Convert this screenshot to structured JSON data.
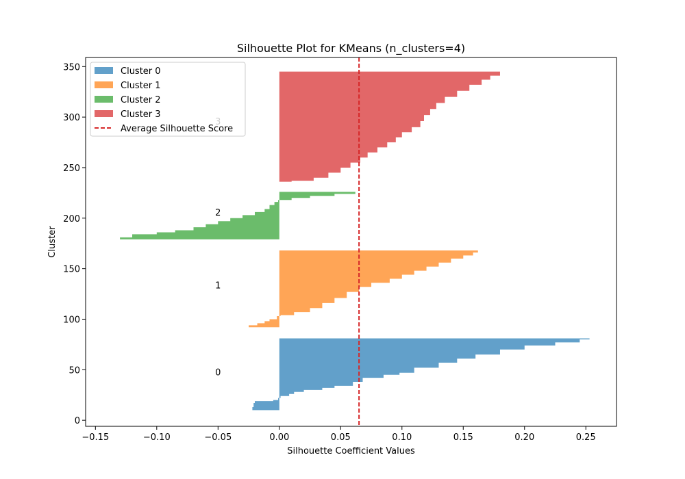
{
  "chart_data": {
    "type": "silhouette",
    "title": "Silhouette Plot for KMeans (n_clusters=4)",
    "xlabel": "Silhouette Coefficient Values",
    "ylabel": "Cluster",
    "xlim": [
      -0.158,
      0.275
    ],
    "ylim": [
      -6,
      359
    ],
    "xticks": [
      -0.15,
      -0.1,
      -0.05,
      0.0,
      0.05,
      0.1,
      0.15,
      0.2,
      0.25
    ],
    "xtick_labels": [
      "−0.15",
      "−0.10",
      "−0.05",
      "0.00",
      "0.05",
      "0.10",
      "0.15",
      "0.20",
      "0.25"
    ],
    "yticks": [
      0,
      50,
      100,
      150,
      200,
      250,
      300,
      350
    ],
    "ytick_labels": [
      "0",
      "50",
      "100",
      "150",
      "200",
      "250",
      "300",
      "350"
    ],
    "average_silhouette_score": 0.065,
    "average_line_color": "#d62728",
    "legend_position": "upper-left",
    "label_x": -0.05,
    "clusters": [
      {
        "label": "0",
        "legend": "Cluster 0",
        "color": "#1f77b4",
        "y_start": 10,
        "y_end": 81,
        "label_y": 48,
        "profile": [
          [
            10,
            -0.028
          ],
          [
            13,
            -0.022
          ],
          [
            15,
            -0.021
          ],
          [
            17,
            -0.021
          ],
          [
            19,
            -0.02
          ],
          [
            20,
            -0.005
          ],
          [
            22,
            -0.001
          ],
          [
            24,
            0.001
          ],
          [
            26,
            0.008
          ],
          [
            28,
            0.012
          ],
          [
            30,
            0.02
          ],
          [
            32,
            0.035
          ],
          [
            34,
            0.045
          ],
          [
            38,
            0.06
          ],
          [
            42,
            0.068
          ],
          [
            45,
            0.085
          ],
          [
            47,
            0.098
          ],
          [
            52,
            0.11
          ],
          [
            57,
            0.13
          ],
          [
            61,
            0.145
          ],
          [
            65,
            0.16
          ],
          [
            70,
            0.18
          ],
          [
            74,
            0.2
          ],
          [
            77,
            0.225
          ],
          [
            80,
            0.245
          ],
          [
            81,
            0.253
          ]
        ]
      },
      {
        "label": "1",
        "legend": "Cluster 1",
        "color": "#ff7f0e",
        "y_start": 92,
        "y_end": 168,
        "label_y": 134,
        "profile": [
          [
            92,
            -0.057
          ],
          [
            94,
            -0.025
          ],
          [
            96,
            -0.018
          ],
          [
            98,
            -0.012
          ],
          [
            100,
            -0.008
          ],
          [
            103,
            -0.002
          ],
          [
            104,
            0.001
          ],
          [
            107,
            0.012
          ],
          [
            111,
            0.025
          ],
          [
            116,
            0.035
          ],
          [
            121,
            0.045
          ],
          [
            127,
            0.055
          ],
          [
            132,
            0.065
          ],
          [
            136,
            0.075
          ],
          [
            140,
            0.09
          ],
          [
            144,
            0.1
          ],
          [
            148,
            0.11
          ],
          [
            152,
            0.12
          ],
          [
            156,
            0.13
          ],
          [
            160,
            0.14
          ],
          [
            163,
            0.15
          ],
          [
            166,
            0.158
          ],
          [
            168,
            0.162
          ]
        ]
      },
      {
        "label": "2",
        "legend": "Cluster 2",
        "color": "#2ca02c",
        "y_start": 179,
        "y_end": 226,
        "label_y": 206,
        "profile": [
          [
            179,
            -0.14
          ],
          [
            181,
            -0.13
          ],
          [
            184,
            -0.12
          ],
          [
            186,
            -0.1
          ],
          [
            188,
            -0.085
          ],
          [
            191,
            -0.07
          ],
          [
            194,
            -0.06
          ],
          [
            197,
            -0.05
          ],
          [
            200,
            -0.04
          ],
          [
            203,
            -0.03
          ],
          [
            206,
            -0.02
          ],
          [
            209,
            -0.012
          ],
          [
            213,
            -0.008
          ],
          [
            216,
            -0.004
          ],
          [
            218,
            -0.001
          ],
          [
            220,
            0.01
          ],
          [
            222,
            0.025
          ],
          [
            224,
            0.045
          ],
          [
            226,
            0.062
          ]
        ]
      },
      {
        "label": "3",
        "legend": "Cluster 3",
        "color": "#d62728",
        "y_start": 236,
        "y_end": 345,
        "label_y": 296,
        "profile": [
          [
            236,
            0.0
          ],
          [
            237,
            0.01
          ],
          [
            240,
            0.028
          ],
          [
            245,
            0.04
          ],
          [
            250,
            0.05
          ],
          [
            255,
            0.058
          ],
          [
            260,
            0.066
          ],
          [
            265,
            0.072
          ],
          [
            270,
            0.08
          ],
          [
            275,
            0.088
          ],
          [
            280,
            0.095
          ],
          [
            285,
            0.1
          ],
          [
            290,
            0.108
          ],
          [
            296,
            0.115
          ],
          [
            302,
            0.118
          ],
          [
            308,
            0.123
          ],
          [
            314,
            0.128
          ],
          [
            320,
            0.135
          ],
          [
            326,
            0.145
          ],
          [
            332,
            0.155
          ],
          [
            337,
            0.165
          ],
          [
            341,
            0.172
          ],
          [
            344,
            0.18
          ],
          [
            345,
            0.18
          ]
        ]
      }
    ],
    "legend": [
      {
        "label": "Cluster 0",
        "kind": "patch",
        "color": "#1f77b4"
      },
      {
        "label": "Cluster 1",
        "kind": "patch",
        "color": "#ff7f0e"
      },
      {
        "label": "Cluster 2",
        "kind": "patch",
        "color": "#2ca02c"
      },
      {
        "label": "Cluster 3",
        "kind": "patch",
        "color": "#d62728"
      },
      {
        "label": "Average Silhouette Score",
        "kind": "dashed-line",
        "color": "#d62728"
      }
    ]
  }
}
